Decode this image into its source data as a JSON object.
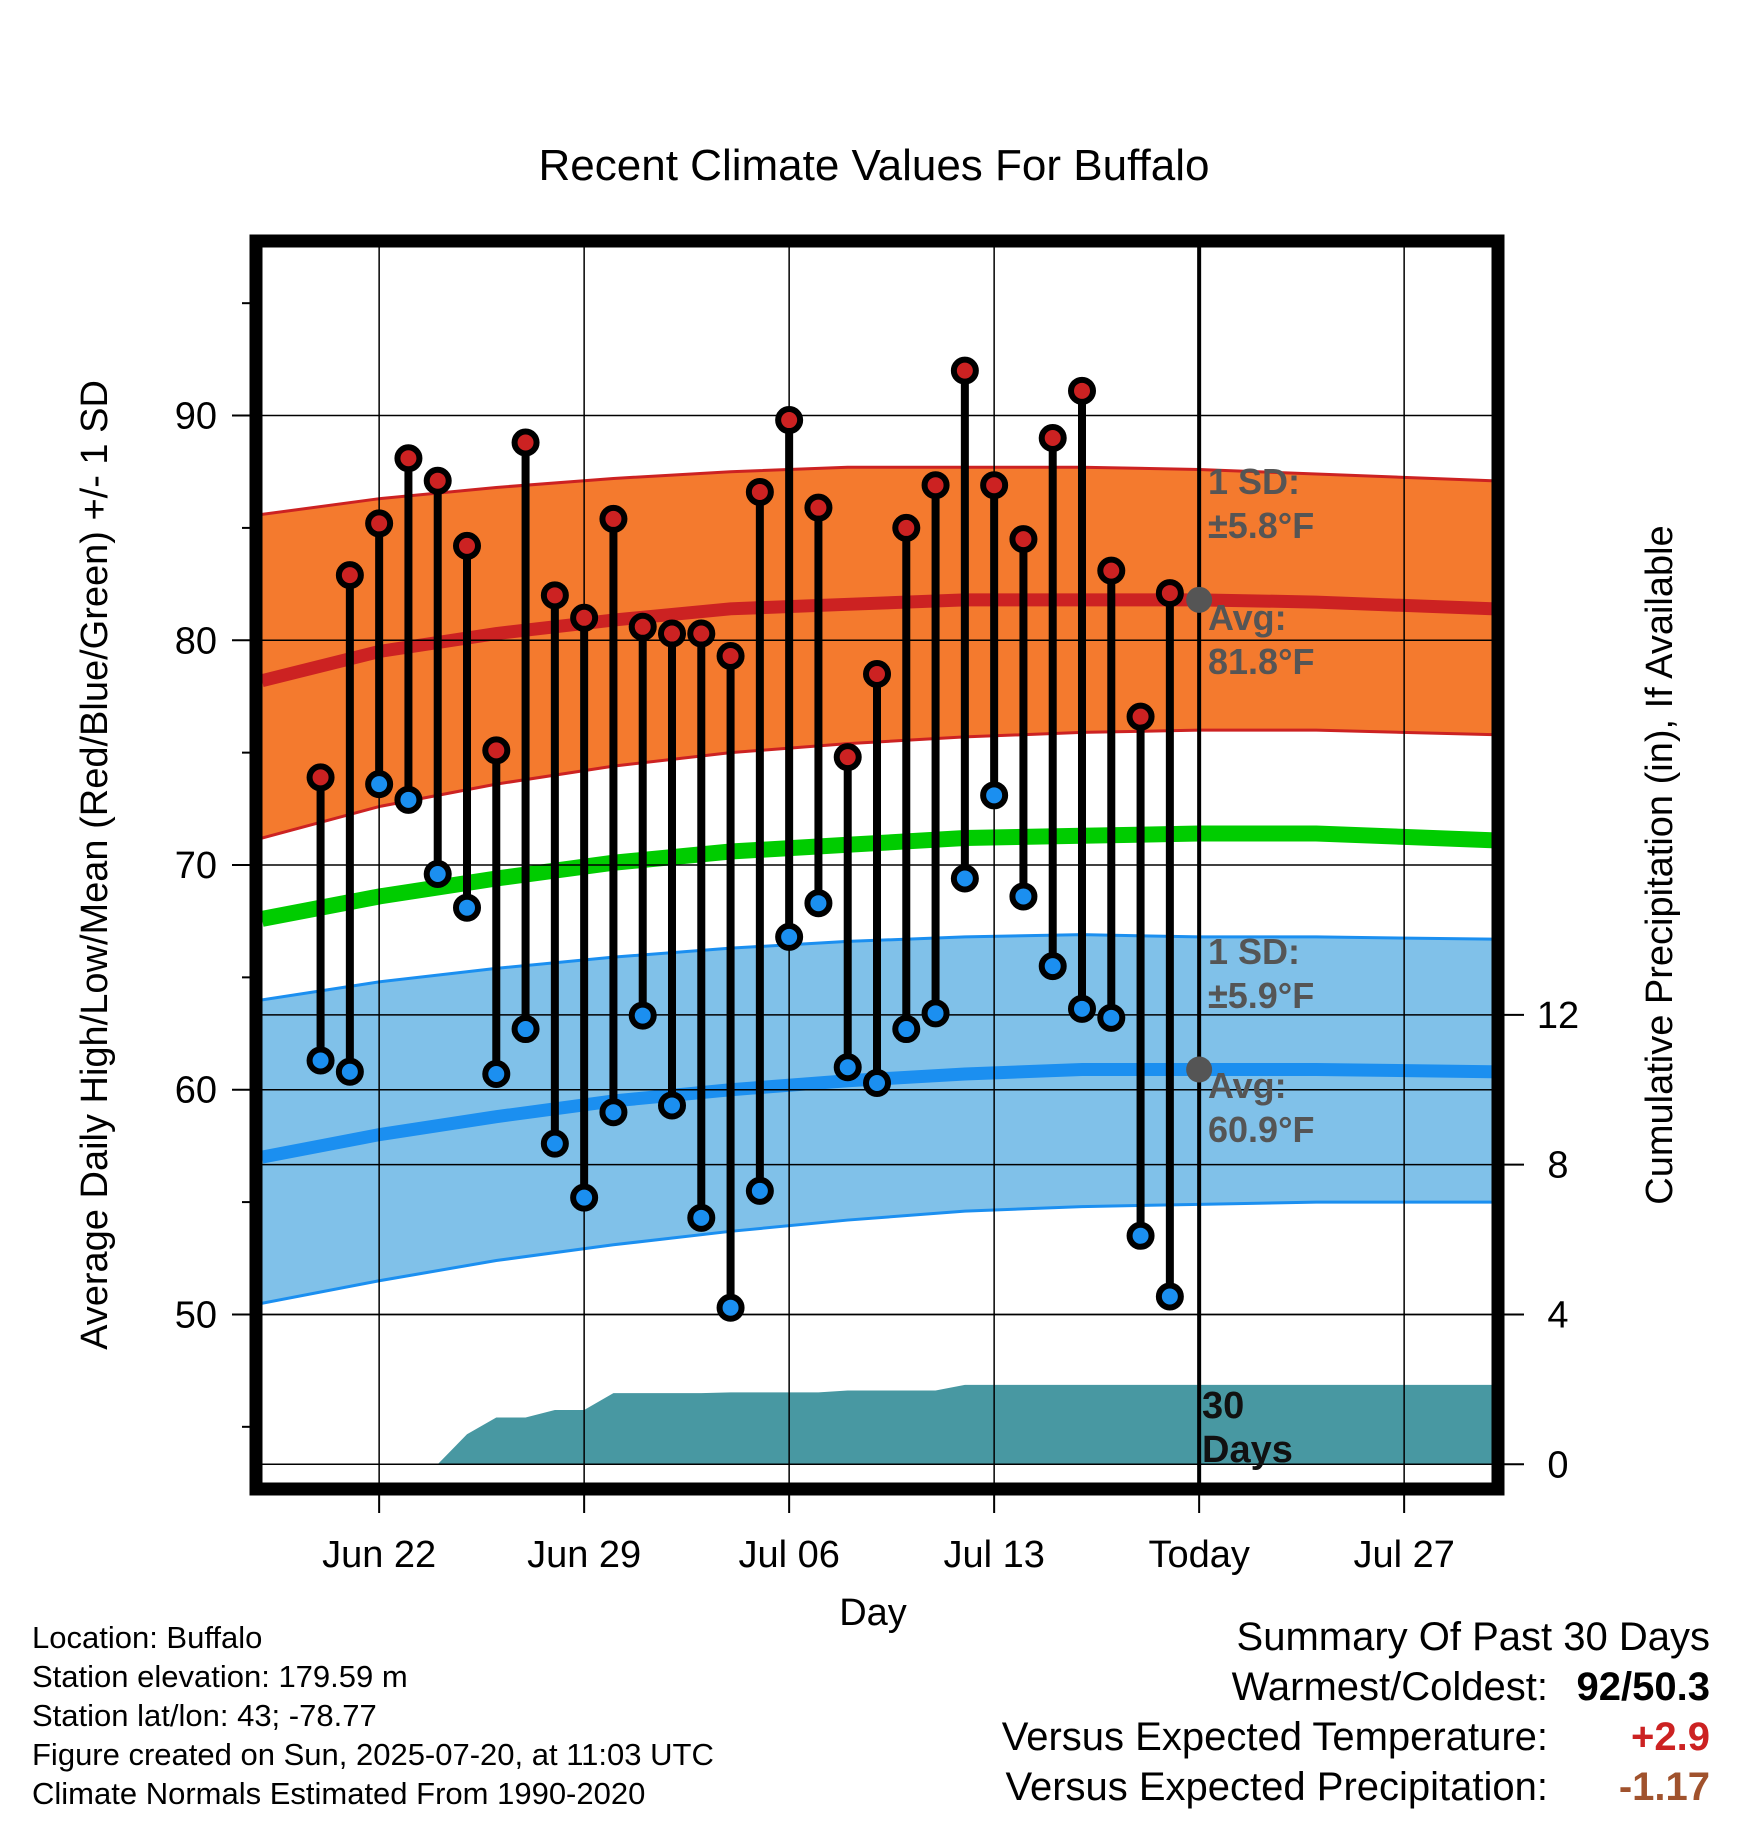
{
  "chart_data": {
    "type": "line",
    "title": "Recent Climate Values For Buffalo",
    "xlabel": "Day",
    "ylabel": "Average Daily High/Low/Mean (Red/Blue/Green) +/- 1 SD",
    "y2label": "Cumulative Precipitation (in), If Available",
    "x_tick_labels": [
      "Jun 22",
      "Jun 29",
      "Jul 06",
      "Jul 13",
      "Today",
      "Jul 27"
    ],
    "x_tick_dates": [
      "2025-06-22",
      "2025-06-29",
      "2025-07-06",
      "2025-07-13",
      "2025-07-20",
      "2025-07-27"
    ],
    "xlim": [
      "2025-06-18",
      "2025-07-30"
    ],
    "ylim": [
      42.5,
      97.5
    ],
    "y_ticks": [
      50,
      60,
      70,
      80,
      90
    ],
    "y2lim": [
      -0.5,
      32.5
    ],
    "y2_ticks": [
      0,
      4,
      8,
      12
    ],
    "grid": true,
    "today": "2025-07-20",
    "days_since_label": "30",
    "days_word": "Days",
    "annotations": {
      "high_sd": "1 SD:",
      "high_sd_value": "±5.8°F",
      "high_avg": "Avg:",
      "high_avg_value": "81.8°F",
      "low_sd": "1 SD:",
      "low_sd_value": "±5.9°F",
      "low_avg": "Avg:",
      "low_avg_value": "60.9°F"
    },
    "observed": {
      "dates": [
        "2025-06-20",
        "2025-06-21",
        "2025-06-22",
        "2025-06-23",
        "2025-06-24",
        "2025-06-25",
        "2025-06-26",
        "2025-06-27",
        "2025-06-28",
        "2025-06-29",
        "2025-06-30",
        "2025-07-01",
        "2025-07-02",
        "2025-07-03",
        "2025-07-04",
        "2025-07-05",
        "2025-07-06",
        "2025-07-07",
        "2025-07-08",
        "2025-07-09",
        "2025-07-10",
        "2025-07-11",
        "2025-07-12",
        "2025-07-13",
        "2025-07-14",
        "2025-07-15",
        "2025-07-16",
        "2025-07-17",
        "2025-07-18",
        "2025-07-19"
      ],
      "highs": [
        73.9,
        82.9,
        85.2,
        88.1,
        87.1,
        84.2,
        75.1,
        88.8,
        82.0,
        81.0,
        85.4,
        80.6,
        80.3,
        80.3,
        79.3,
        86.6,
        89.8,
        85.9,
        74.8,
        78.5,
        85.0,
        86.9,
        92.0,
        86.9,
        84.5,
        89.0,
        91.1,
        83.1,
        76.6,
        82.1
      ],
      "lows": [
        61.3,
        60.8,
        73.6,
        72.9,
        69.6,
        68.1,
        60.7,
        62.7,
        57.6,
        55.2,
        59.0,
        63.3,
        59.3,
        54.3,
        50.3,
        55.5,
        66.8,
        68.3,
        61.0,
        60.3,
        62.7,
        63.4,
        69.4,
        73.1,
        68.6,
        65.5,
        63.6,
        63.2,
        53.5,
        50.8
      ]
    },
    "normals": {
      "dates": [
        "2025-06-18",
        "2025-06-22",
        "2025-06-26",
        "2025-06-30",
        "2025-07-04",
        "2025-07-08",
        "2025-07-12",
        "2025-07-16",
        "2025-07-20",
        "2025-07-24",
        "2025-07-30"
      ],
      "high_avg": [
        78.2,
        79.5,
        80.3,
        80.9,
        81.4,
        81.6,
        81.8,
        81.8,
        81.8,
        81.7,
        81.4
      ],
      "high_sd_upper": [
        85.6,
        86.3,
        86.8,
        87.2,
        87.5,
        87.7,
        87.7,
        87.7,
        87.6,
        87.4,
        87.1
      ],
      "high_sd_lower": [
        71.2,
        72.6,
        73.6,
        74.4,
        75.0,
        75.4,
        75.7,
        75.9,
        76.0,
        76.0,
        75.8
      ],
      "mean": [
        67.6,
        68.6,
        69.4,
        70.1,
        70.6,
        70.9,
        71.2,
        71.3,
        71.4,
        71.4,
        71.1
      ],
      "low_avg": [
        57.0,
        58.0,
        58.8,
        59.5,
        60.0,
        60.4,
        60.7,
        60.9,
        60.9,
        60.9,
        60.8
      ],
      "low_sd_upper": [
        64.0,
        64.8,
        65.4,
        65.9,
        66.3,
        66.6,
        66.8,
        66.9,
        66.8,
        66.8,
        66.7
      ],
      "low_sd_lower": [
        50.5,
        51.5,
        52.4,
        53.1,
        53.7,
        54.2,
        54.6,
        54.8,
        54.9,
        55.0,
        55.0
      ]
    },
    "precipitation": {
      "dates": [
        "2025-06-23",
        "2025-06-24",
        "2025-06-25",
        "2025-06-26",
        "2025-06-27",
        "2025-06-28",
        "2025-06-29",
        "2025-06-30",
        "2025-07-01",
        "2025-07-02",
        "2025-07-03",
        "2025-07-04",
        "2025-07-05",
        "2025-07-06",
        "2025-07-07",
        "2025-07-08",
        "2025-07-09",
        "2025-07-10",
        "2025-07-11",
        "2025-07-12",
        "2025-07-13",
        "2025-07-14",
        "2025-07-15",
        "2025-07-16",
        "2025-07-17",
        "2025-07-18",
        "2025-07-19",
        "2025-07-20",
        "2025-07-30"
      ],
      "cumulative": [
        0.0,
        0.0,
        0.8,
        1.25,
        1.25,
        1.45,
        1.45,
        1.9,
        1.9,
        1.9,
        1.9,
        1.92,
        1.92,
        1.92,
        1.92,
        1.97,
        1.97,
        1.97,
        1.97,
        2.12,
        2.12,
        2.12,
        2.12,
        2.12,
        2.12,
        2.12,
        2.12,
        2.12,
        2.12
      ]
    },
    "colors": {
      "high": "#cc2222",
      "high_band": "#f47a2e",
      "low": "#1b8ff0",
      "low_band": "#80c1e9",
      "mean": "#00cc00",
      "precip": "#4898a2",
      "today_marker": "#555555",
      "annotation": "#555555"
    }
  },
  "info": {
    "location": "Location: Buffalo",
    "elevation": "Station elevation: 179.59 m",
    "latlon": "Station lat/lon: 43; -78.77",
    "created": "Figure created on Sun, 2025-07-20, at 11:03 UTC",
    "normals": "Climate Normals Estimated From 1990-2020"
  },
  "summary": {
    "heading": "Summary Of Past 30 Days",
    "warmest_label": "Warmest/Coldest:",
    "warmest_value": "92/50.3",
    "temp_label": "Versus Expected Temperature:",
    "temp_value": "+2.9",
    "temp_color": "#cc2222",
    "precip_label": "Versus Expected Precipitation:",
    "precip_value": "-1.17",
    "precip_color": "#a0522d"
  }
}
